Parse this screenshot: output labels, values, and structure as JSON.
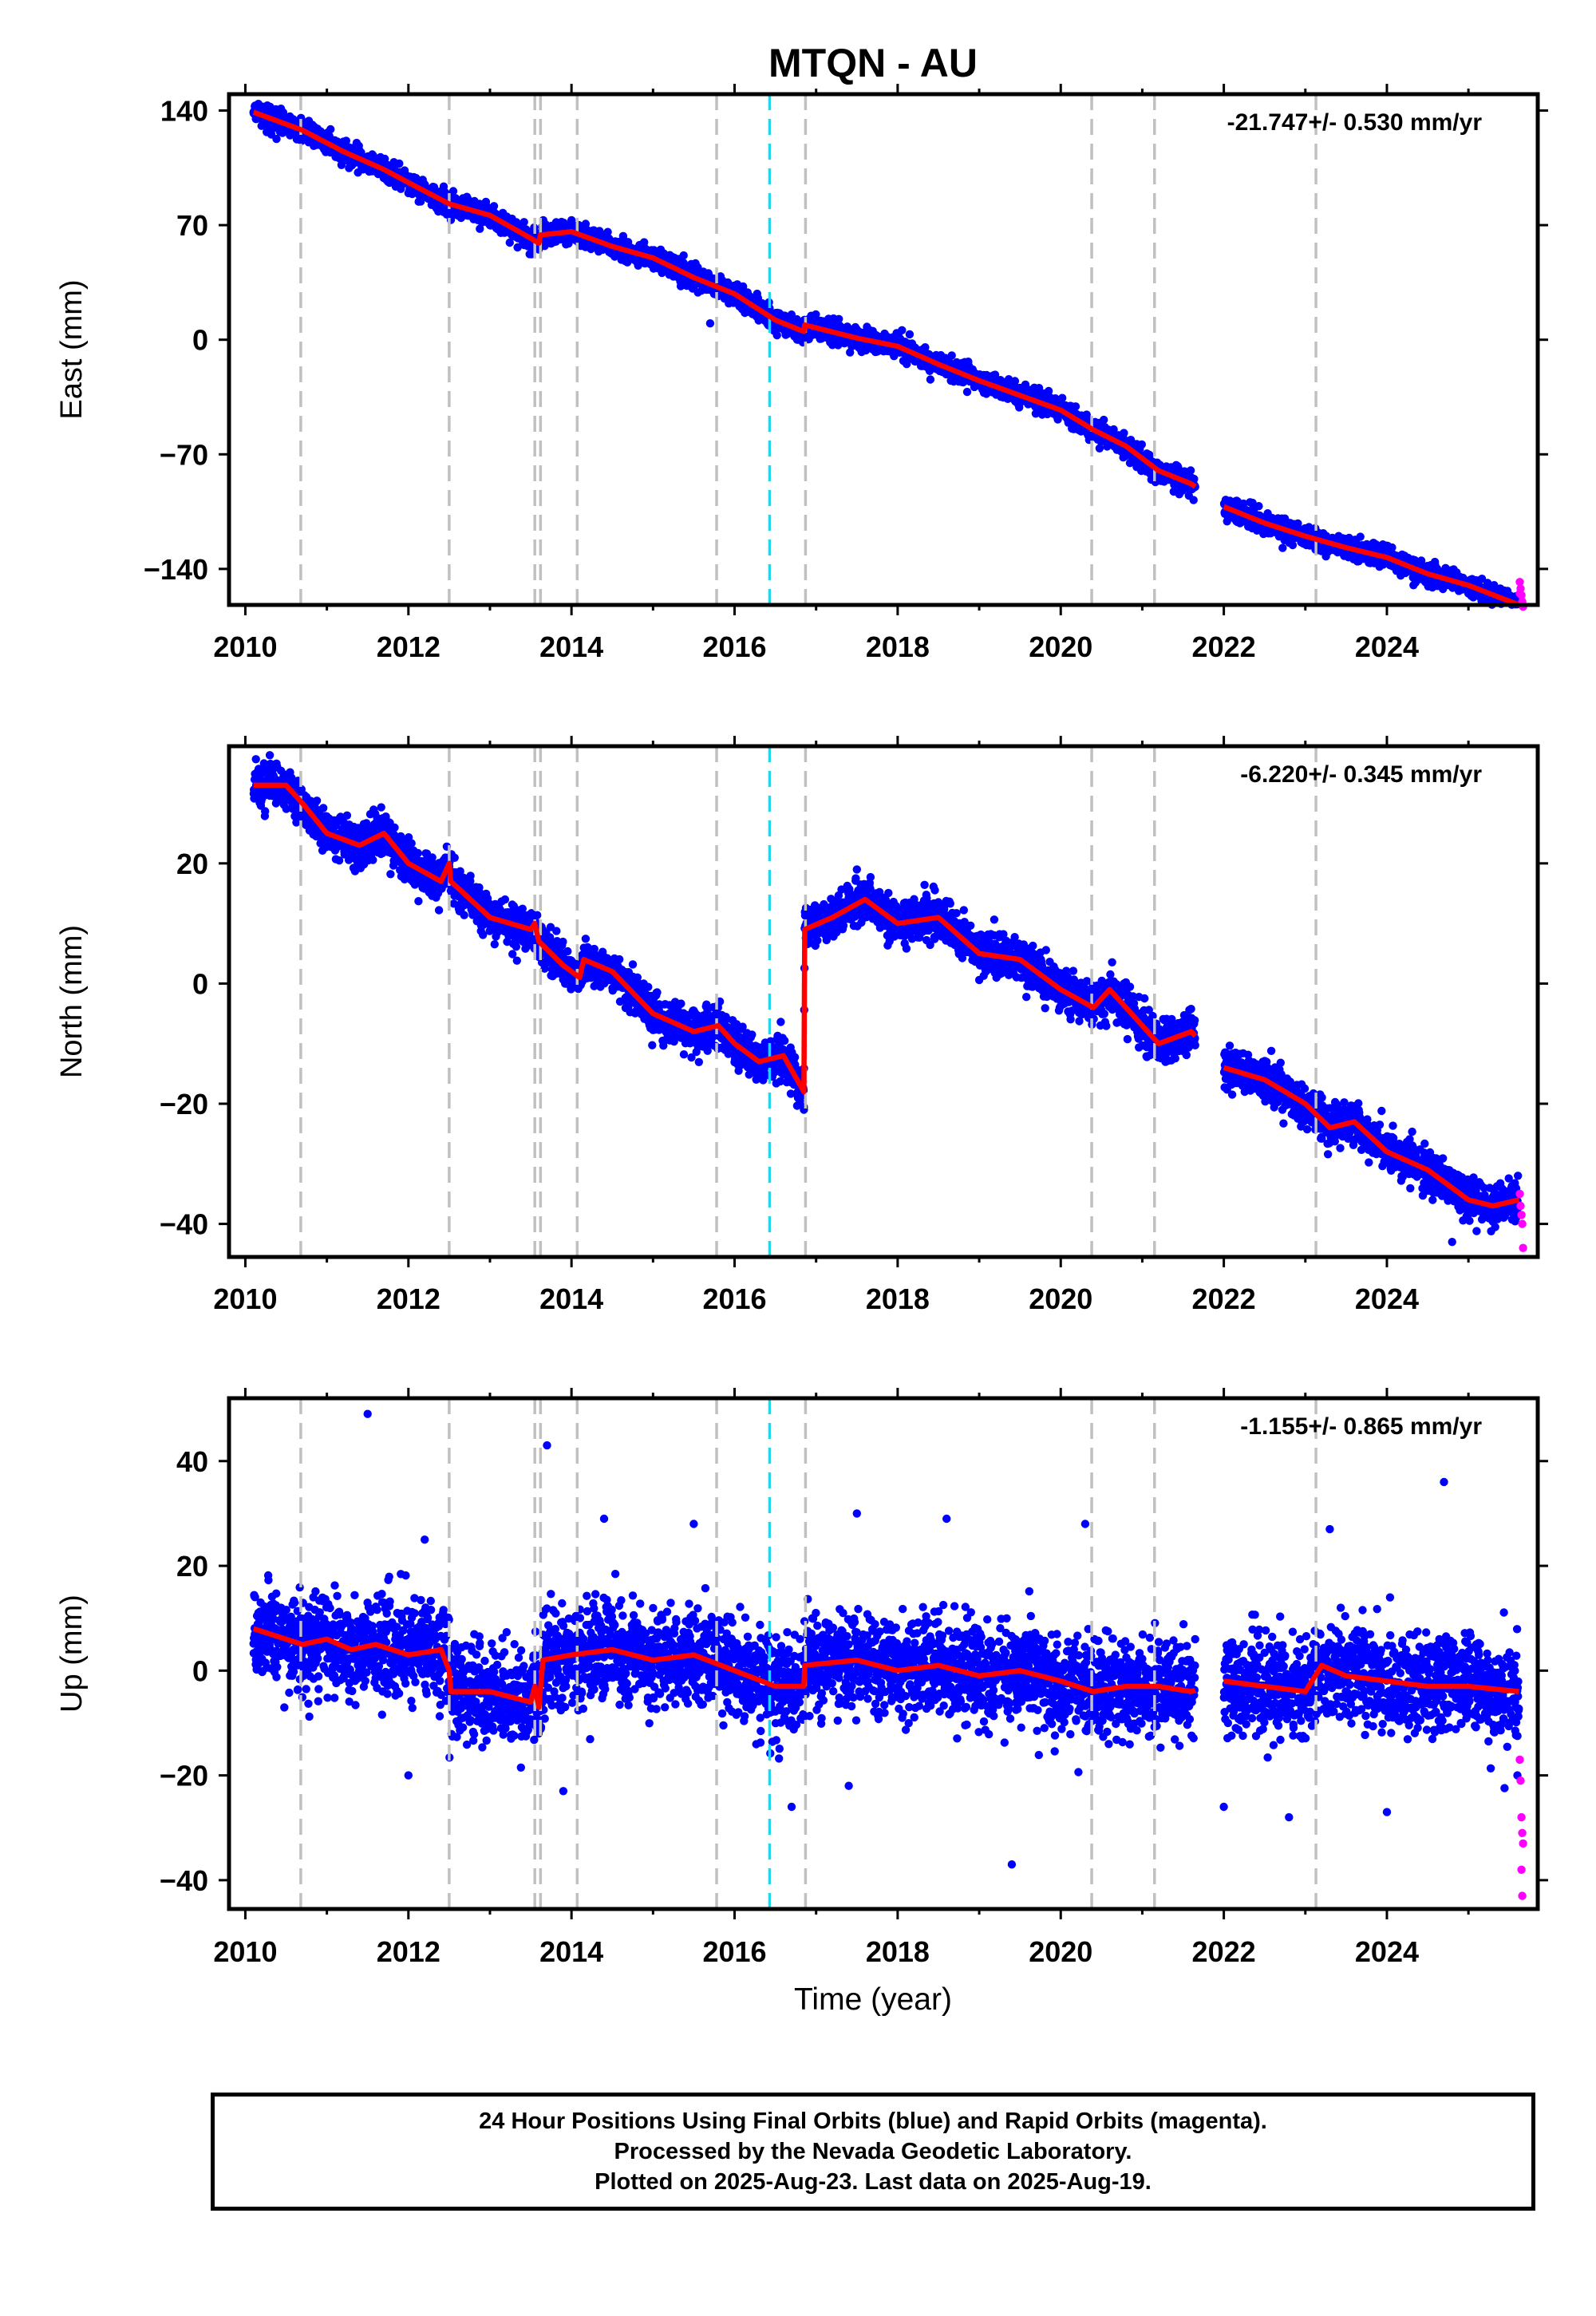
{
  "title": "MTQN - AU",
  "xlabel": "Time (year)",
  "colors": {
    "final_points": "#0000ff",
    "rapid_points": "#ff00ff",
    "model": "#ff0000",
    "equipment_change": "#c0c0c0",
    "earthquake_event": "#00e5ff"
  },
  "footer": {
    "line1": "24 Hour Positions Using Final Orbits (blue) and Rapid Orbits (magenta).",
    "line2": "Processed by the Nevada Geodetic Laboratory.",
    "line3": "Plotted on 2025-Aug-23. Last data on 2025-Aug-19."
  },
  "chart_data": [
    {
      "type": "scatter",
      "component": "East",
      "ylabel": "East (mm)",
      "velocity_label": "-21.747+/- 0.530 mm/yr",
      "xlim": [
        2009.8,
        2025.85
      ],
      "ylim": [
        -162,
        150
      ],
      "xticks": [
        2010,
        2012,
        2014,
        2016,
        2018,
        2020,
        2022,
        2024
      ],
      "yticks": [
        140,
        70,
        0,
        -70,
        -140
      ],
      "ytick_labels": [
        "140",
        "70",
        "0",
        "−70",
        "−140"
      ],
      "data_start": 2010.1,
      "data_end": 2025.62,
      "data_gap": [
        2021.65,
        2022.0
      ],
      "model_trend": [
        [
          2010.1,
          139
        ],
        [
          2010.7,
          128
        ],
        [
          2011.2,
          115
        ],
        [
          2011.7,
          104
        ],
        [
          2012.0,
          96
        ],
        [
          2012.5,
          83
        ],
        [
          2013.0,
          76
        ],
        [
          2013.5,
          62
        ],
        [
          2013.6,
          59
        ],
        [
          2013.62,
          64
        ],
        [
          2014.0,
          66
        ],
        [
          2014.5,
          57
        ],
        [
          2015.0,
          50
        ],
        [
          2015.5,
          38
        ],
        [
          2016.0,
          28
        ],
        [
          2016.5,
          12
        ],
        [
          2016.85,
          5
        ],
        [
          2016.86,
          9
        ],
        [
          2017.5,
          1
        ],
        [
          2018.0,
          -4
        ],
        [
          2018.5,
          -15
        ],
        [
          2019.0,
          -25
        ],
        [
          2019.5,
          -34
        ],
        [
          2020.0,
          -43
        ],
        [
          2020.4,
          -55
        ],
        [
          2020.8,
          -65
        ],
        [
          2021.2,
          -80
        ],
        [
          2021.6,
          -88
        ],
        [
          2022.0,
          -102
        ],
        [
          2022.5,
          -112
        ],
        [
          2023.0,
          -120
        ],
        [
          2023.5,
          -127
        ],
        [
          2024.0,
          -133
        ],
        [
          2024.5,
          -143
        ],
        [
          2025.0,
          -150
        ],
        [
          2025.62,
          -162
        ]
      ],
      "noise_mm": 3.2,
      "outliers": [
        [
          2015.7,
          10
        ],
        [
          2015.2,
          42
        ],
        [
          2014.0,
          73
        ]
      ],
      "rapid_points": [
        [
          2025.63,
          -148
        ],
        [
          2025.64,
          -152
        ],
        [
          2025.65,
          -156
        ],
        [
          2025.66,
          -160
        ],
        [
          2025.67,
          -163
        ],
        [
          2025.63,
          -155
        ]
      ]
    },
    {
      "type": "scatter",
      "component": "North",
      "ylabel": "North (mm)",
      "velocity_label": "-6.220+/- 0.345 mm/yr",
      "xlim": [
        2009.8,
        2025.85
      ],
      "ylim": [
        -45.5,
        39.5
      ],
      "xticks": [
        2010,
        2012,
        2014,
        2016,
        2018,
        2020,
        2022,
        2024
      ],
      "yticks": [
        20,
        0,
        -20,
        -40
      ],
      "ytick_labels": [
        "20",
        "0",
        "−20",
        "−40"
      ],
      "data_start": 2010.1,
      "data_end": 2025.62,
      "data_gap": [
        2021.65,
        2022.0
      ],
      "model_trend": [
        [
          2010.1,
          33
        ],
        [
          2010.5,
          33
        ],
        [
          2010.7,
          30
        ],
        [
          2011.0,
          25
        ],
        [
          2011.4,
          23
        ],
        [
          2011.7,
          25
        ],
        [
          2012.0,
          20
        ],
        [
          2012.4,
          17
        ],
        [
          2012.5,
          20
        ],
        [
          2012.52,
          17
        ],
        [
          2013.0,
          11
        ],
        [
          2013.5,
          9
        ],
        [
          2013.55,
          10
        ],
        [
          2013.6,
          7
        ],
        [
          2013.9,
          3
        ],
        [
          2014.1,
          1
        ],
        [
          2014.15,
          4
        ],
        [
          2014.5,
          2
        ],
        [
          2015.0,
          -5
        ],
        [
          2015.5,
          -8
        ],
        [
          2015.8,
          -7
        ],
        [
          2016.0,
          -10
        ],
        [
          2016.3,
          -13
        ],
        [
          2016.6,
          -12
        ],
        [
          2016.85,
          -18
        ],
        [
          2016.86,
          9
        ],
        [
          2017.2,
          11
        ],
        [
          2017.6,
          14
        ],
        [
          2018.0,
          10
        ],
        [
          2018.5,
          11
        ],
        [
          2019.0,
          5
        ],
        [
          2019.5,
          4
        ],
        [
          2020.0,
          -1
        ],
        [
          2020.4,
          -4
        ],
        [
          2020.6,
          -1
        ],
        [
          2021.0,
          -7
        ],
        [
          2021.2,
          -10
        ],
        [
          2021.6,
          -8
        ],
        [
          2022.0,
          -14
        ],
        [
          2022.5,
          -16
        ],
        [
          2023.0,
          -20
        ],
        [
          2023.3,
          -24
        ],
        [
          2023.6,
          -23
        ],
        [
          2024.0,
          -28
        ],
        [
          2024.5,
          -31
        ],
        [
          2025.0,
          -36
        ],
        [
          2025.3,
          -37
        ],
        [
          2025.62,
          -36
        ]
      ],
      "noise_mm": 1.7,
      "outliers": [
        [
          2010.3,
          38
        ],
        [
          2016.85,
          -21
        ],
        [
          2017.5,
          19
        ],
        [
          2024.8,
          -43
        ]
      ],
      "rapid_points": [
        [
          2025.63,
          -35
        ],
        [
          2025.64,
          -37
        ],
        [
          2025.65,
          -38.5
        ],
        [
          2025.66,
          -40
        ],
        [
          2025.67,
          -44
        ]
      ]
    },
    {
      "type": "scatter",
      "component": "Up",
      "ylabel": "Up (mm)",
      "velocity_label": "-1.155+/- 0.865 mm/yr",
      "xlim": [
        2009.8,
        2025.85
      ],
      "ylim": [
        -45.5,
        52
      ],
      "xticks": [
        2010,
        2012,
        2014,
        2016,
        2018,
        2020,
        2022,
        2024
      ],
      "yticks": [
        40,
        20,
        0,
        -20,
        -40
      ],
      "ytick_labels": [
        "40",
        "20",
        "0",
        "−20",
        "−40"
      ],
      "data_start": 2010.1,
      "data_end": 2025.62,
      "data_gap": [
        2021.65,
        2022.0
      ],
      "model_trend": [
        [
          2010.1,
          8
        ],
        [
          2010.5,
          6
        ],
        [
          2010.7,
          5
        ],
        [
          2011.0,
          6
        ],
        [
          2011.3,
          4
        ],
        [
          2011.6,
          5
        ],
        [
          2012.0,
          3
        ],
        [
          2012.4,
          4
        ],
        [
          2012.5,
          0
        ],
        [
          2012.52,
          -4
        ],
        [
          2013.0,
          -4
        ],
        [
          2013.5,
          -6
        ],
        [
          2013.55,
          -3
        ],
        [
          2013.6,
          -7
        ],
        [
          2013.65,
          2
        ],
        [
          2014.0,
          3
        ],
        [
          2014.5,
          4
        ],
        [
          2015.0,
          2
        ],
        [
          2015.5,
          3
        ],
        [
          2016.0,
          0
        ],
        [
          2016.5,
          -3
        ],
        [
          2016.85,
          -3
        ],
        [
          2016.86,
          1
        ],
        [
          2017.5,
          2
        ],
        [
          2018.0,
          0
        ],
        [
          2018.5,
          1
        ],
        [
          2019.0,
          -1
        ],
        [
          2019.5,
          0
        ],
        [
          2020.0,
          -2
        ],
        [
          2020.4,
          -4
        ],
        [
          2020.8,
          -3
        ],
        [
          2021.2,
          -3
        ],
        [
          2021.6,
          -4
        ],
        [
          2022.0,
          -2
        ],
        [
          2022.5,
          -3
        ],
        [
          2023.0,
          -4
        ],
        [
          2023.2,
          1
        ],
        [
          2023.5,
          -1
        ],
        [
          2024.0,
          -2
        ],
        [
          2024.5,
          -3
        ],
        [
          2025.0,
          -3
        ],
        [
          2025.62,
          -4
        ]
      ],
      "noise_mm": 4.6,
      "outliers": [
        [
          2011.5,
          49
        ],
        [
          2013.7,
          43
        ],
        [
          2024.7,
          36
        ],
        [
          2012.2,
          25
        ],
        [
          2014.4,
          29
        ],
        [
          2015.5,
          28
        ],
        [
          2017.5,
          30
        ],
        [
          2018.6,
          29
        ],
        [
          2020.3,
          28
        ],
        [
          2023.3,
          27
        ],
        [
          2019.4,
          -37
        ],
        [
          2016.7,
          -26
        ],
        [
          2013.9,
          -23
        ],
        [
          2022.0,
          -26
        ],
        [
          2022.8,
          -28
        ],
        [
          2024.0,
          -27
        ],
        [
          2017.4,
          -22
        ],
        [
          2012.0,
          -20
        ],
        [
          2025.6,
          -20
        ]
      ],
      "rapid_points": [
        [
          2025.63,
          -17
        ],
        [
          2025.64,
          -21
        ],
        [
          2025.65,
          -28
        ],
        [
          2025.66,
          -31
        ],
        [
          2025.67,
          -33
        ],
        [
          2025.65,
          -38
        ],
        [
          2025.66,
          -43
        ]
      ]
    }
  ],
  "equipment_changes": [
    2010.68,
    2012.5,
    2013.55,
    2013.62,
    2014.07,
    2015.78,
    2016.87,
    2020.38,
    2021.15,
    2023.13
  ],
  "earthquake_events": [
    2016.43
  ]
}
